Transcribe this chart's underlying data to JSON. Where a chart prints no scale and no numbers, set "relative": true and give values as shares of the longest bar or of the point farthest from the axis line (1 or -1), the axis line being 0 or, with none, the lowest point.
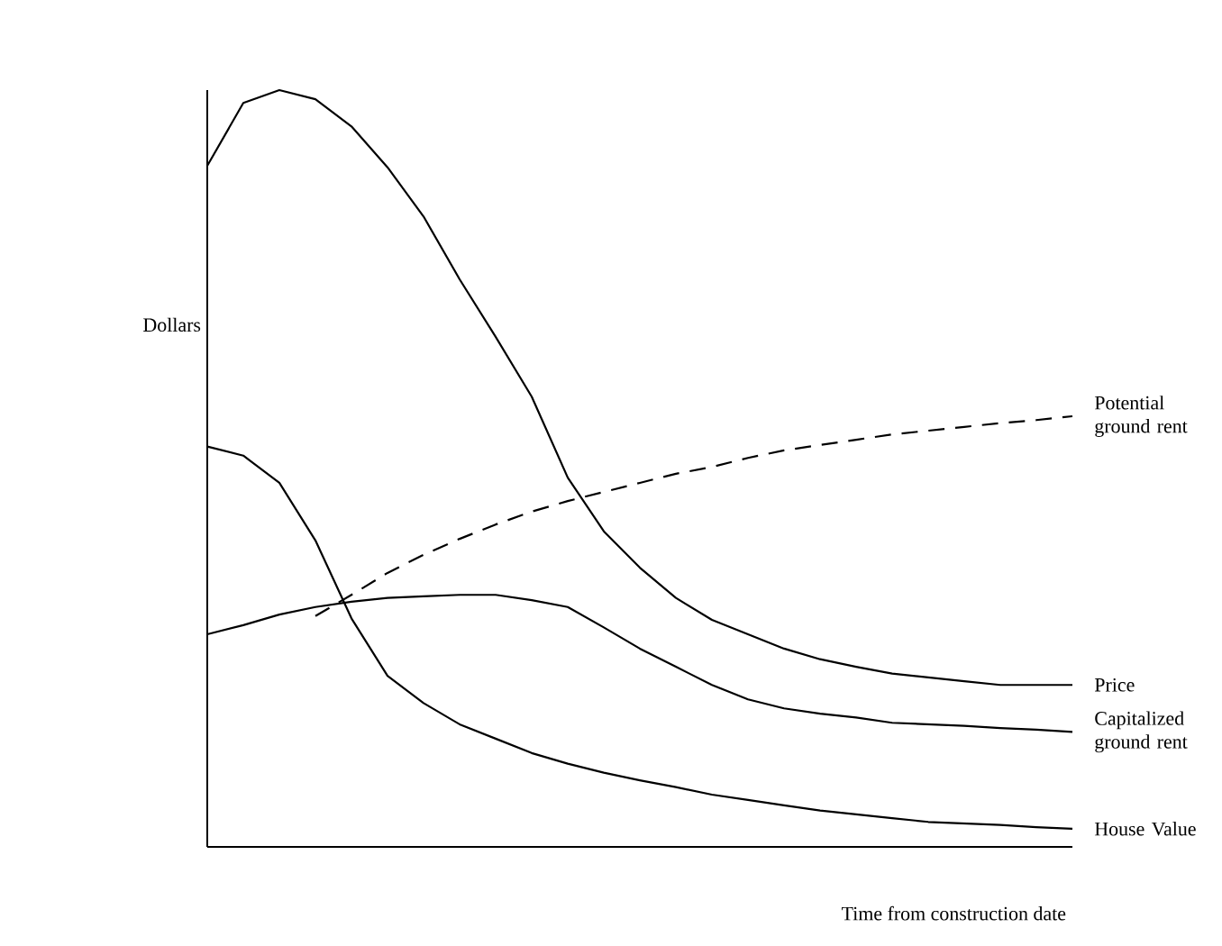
{
  "chart_data": {
    "type": "line",
    "relative": true,
    "xlabel": "Time from construction date",
    "ylabel": "Dollars",
    "legend": false,
    "categories": [
      null,
      null,
      null,
      null,
      null,
      null,
      null,
      null,
      null,
      null,
      null,
      null,
      null,
      null,
      null,
      null,
      null,
      null,
      null,
      null,
      null,
      null,
      null,
      null,
      null
    ],
    "series": [
      {
        "name": "Potential ground rent",
        "color": "#000000",
        "line_style": "dashed",
        "values": [
          null,
          null,
          null,
          0.305,
          0.333,
          0.362,
          0.386,
          0.407,
          0.426,
          0.443,
          0.457,
          0.469,
          0.481,
          0.493,
          0.502,
          0.514,
          0.524,
          0.531,
          0.538,
          0.545,
          0.55,
          0.555,
          0.56,
          0.564,
          0.569
        ]
      },
      {
        "name": "Price",
        "color": "#000000",
        "line_style": "solid",
        "values": [
          0.9,
          0.983,
          1,
          0.988,
          0.952,
          0.898,
          0.833,
          0.75,
          0.674,
          0.595,
          0.488,
          0.417,
          0.369,
          0.329,
          0.3,
          0.281,
          0.262,
          0.248,
          0.238,
          0.229,
          0.224,
          0.219,
          0.214,
          0.214,
          0.214
        ]
      },
      {
        "name": "Capitalized ground rent",
        "color": "#000000",
        "line_style": "solid",
        "values": [
          0.281,
          0.293,
          0.307,
          0.317,
          0.324,
          0.329,
          0.331,
          0.333,
          0.333,
          0.326,
          0.317,
          0.29,
          0.262,
          0.238,
          0.214,
          0.195,
          0.183,
          0.176,
          0.171,
          0.164,
          0.162,
          0.16,
          0.157,
          0.155,
          0.152
        ]
      },
      {
        "name": "House Value",
        "color": "#000000",
        "line_style": "solid",
        "values": [
          0.529,
          0.517,
          0.481,
          0.405,
          0.302,
          0.226,
          0.19,
          0.162,
          0.143,
          0.124,
          0.11,
          0.098,
          0.088,
          0.079,
          0.069,
          0.062,
          0.055,
          0.048,
          0.043,
          0.038,
          0.033,
          0.031,
          0.029,
          0.026,
          0.024
        ]
      }
    ]
  }
}
